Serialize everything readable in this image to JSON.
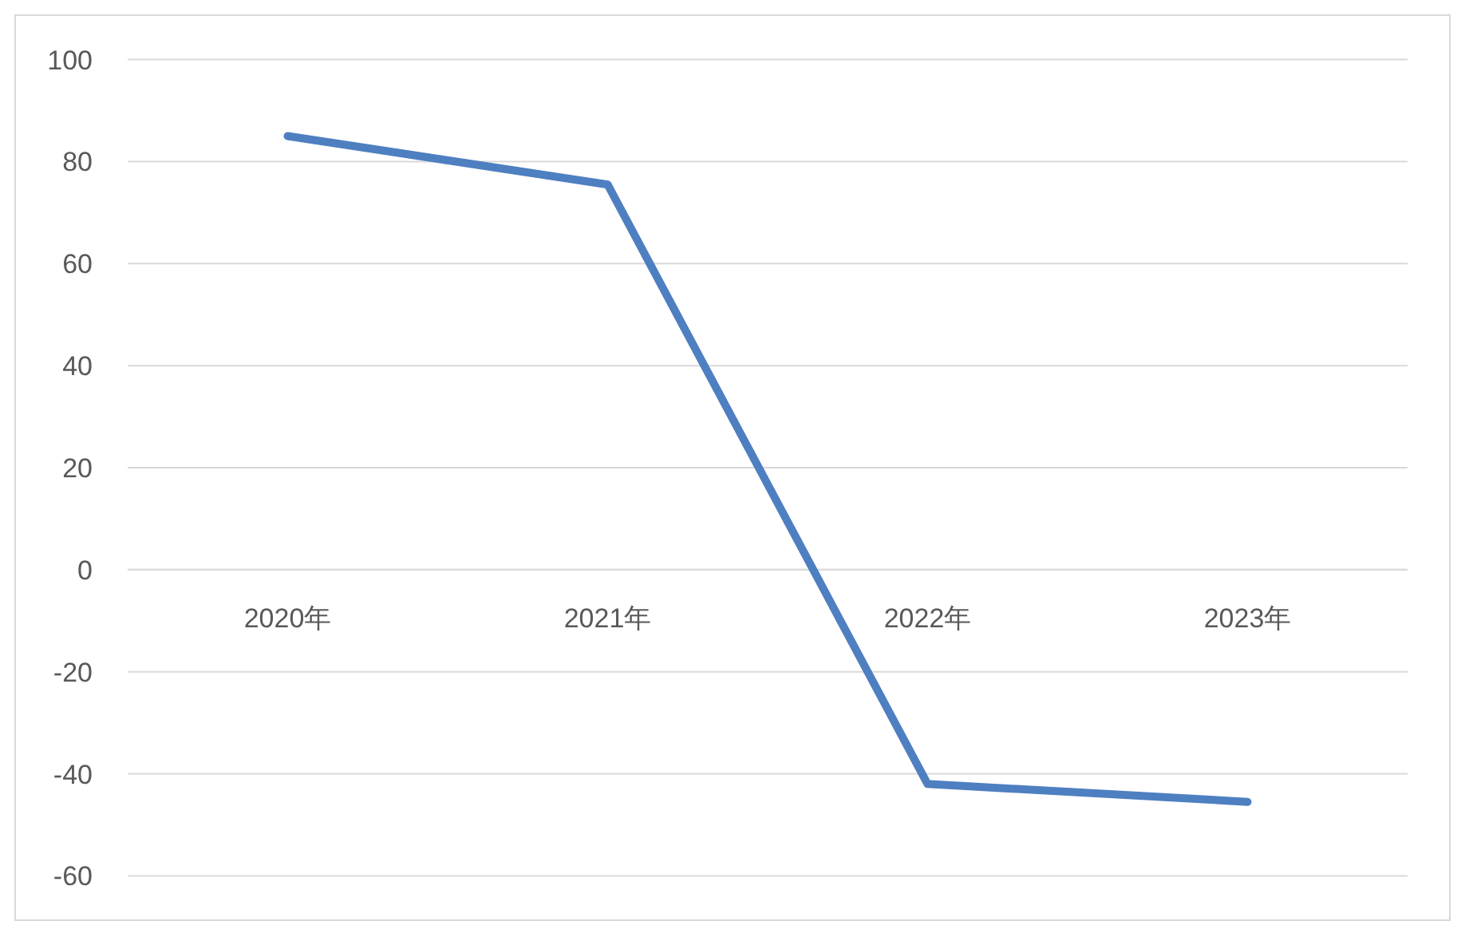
{
  "chart_data": {
    "type": "line",
    "categories": [
      "2020年",
      "2021年",
      "2022年",
      "2023年"
    ],
    "series": [
      {
        "color": "#4e7fc0",
        "values": [
          85,
          75.5,
          -42,
          -45.5
        ]
      }
    ],
    "ylim": [
      -60,
      100
    ],
    "yticks": [
      -60,
      -40,
      -20,
      0,
      20,
      40,
      60,
      80,
      100
    ],
    "grid": "y",
    "marker": "none",
    "line_style": "solid"
  }
}
